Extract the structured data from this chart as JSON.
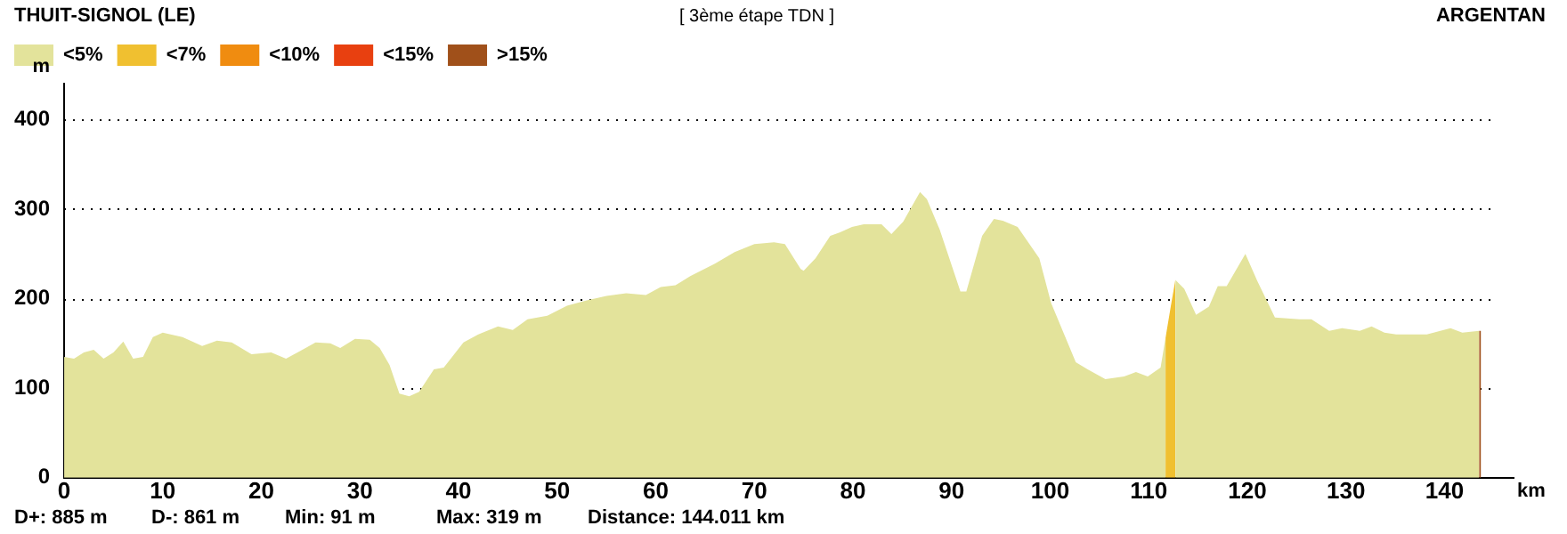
{
  "chart_data": {
    "type": "area",
    "title": "[ 3ème étape TDN ]",
    "xlabel": "km",
    "ylabel": "m",
    "annotations": [
      "THUIT-SIGNOL (LE)",
      "ARGENTAN",
      "D+: 885 m",
      "D-: 861 m",
      "Min: 91 m",
      "Max: 319 m",
      "Distance: 144.011 km"
    ],
    "series": [
      {
        "name": "<5%",
        "color": "#e3e39b",
        "x": [
          0,
          1,
          2,
          3,
          4,
          5,
          6,
          7,
          8,
          9,
          10,
          12,
          14,
          15.5,
          17,
          19,
          21,
          22.5,
          24,
          25.5,
          27,
          28,
          29.5,
          31,
          32,
          33,
          34,
          35,
          36,
          37.5,
          38.5,
          40.5,
          42,
          44,
          45.5,
          47,
          49,
          51,
          53,
          55,
          57,
          59,
          60.5,
          62,
          63.5,
          66,
          68,
          70,
          72,
          73.1,
          74.7,
          75,
          76.2,
          77.7,
          78.7,
          79.9,
          81.1,
          82.9,
          83.9,
          85.1,
          86.8,
          87.5,
          88.8,
          90.9,
          91.5,
          93.1,
          94.3,
          95.2,
          96.7,
          98.9,
          100.1,
          102.6,
          103.8,
          105.6,
          107.5,
          108.7,
          109.9,
          111.2,
          111.7,
          112.2,
          112.7,
          113.6,
          114.8,
          116.1,
          117,
          117.9,
          119.8,
          121,
          122.8,
          125.3,
          126.5,
          128.3,
          129.6,
          131.4,
          132.6,
          133.9,
          135.1,
          138.2,
          140.6,
          141.8,
          143.5
        ],
        "values": [
          135,
          133,
          140,
          143,
          133,
          140,
          152,
          133,
          135,
          157,
          162,
          157,
          147,
          153,
          151,
          138,
          140,
          133,
          142,
          151,
          150,
          145,
          155,
          154,
          145,
          126,
          94,
          91,
          96,
          121,
          123,
          151,
          160,
          169,
          165,
          177,
          181,
          192,
          198,
          203,
          206,
          204,
          213,
          215,
          225,
          239,
          252,
          261,
          263,
          261,
          233,
          231,
          245,
          270,
          274,
          280,
          283,
          283,
          272,
          286,
          319,
          311,
          277,
          208,
          208,
          270,
          289,
          287,
          280,
          245,
          195,
          129,
          121,
          110,
          113,
          118,
          113,
          123,
          156,
          null,
          221,
          211,
          182,
          191,
          214,
          214,
          250,
          220,
          179,
          177,
          177,
          164,
          167,
          164,
          169,
          162,
          160,
          160,
          167,
          162,
          164
        ]
      },
      {
        "name": "<7%",
        "color": "#f0c030",
        "x": [
          111.7,
          112.2,
          112.7
        ],
        "values": [
          156,
          189,
          221
        ]
      },
      {
        "name": "<10%",
        "color": "#f08c10"
      },
      {
        "name": "<15%",
        "color": "#e84010"
      },
      {
        "name": ">15%",
        "color": "#a0501a",
        "x": [
          143.5,
          143.7
        ],
        "values": [
          164,
          164
        ]
      }
    ],
    "xlim": [
      0,
      147
    ],
    "xticks": [
      0,
      10,
      20,
      30,
      40,
      50,
      60,
      70,
      80,
      90,
      100,
      110,
      120,
      130,
      140
    ],
    "ylim": [
      0,
      440
    ],
    "yticks": [
      0,
      100,
      200,
      300,
      400
    ],
    "grid": "y",
    "legend": "top left"
  }
}
